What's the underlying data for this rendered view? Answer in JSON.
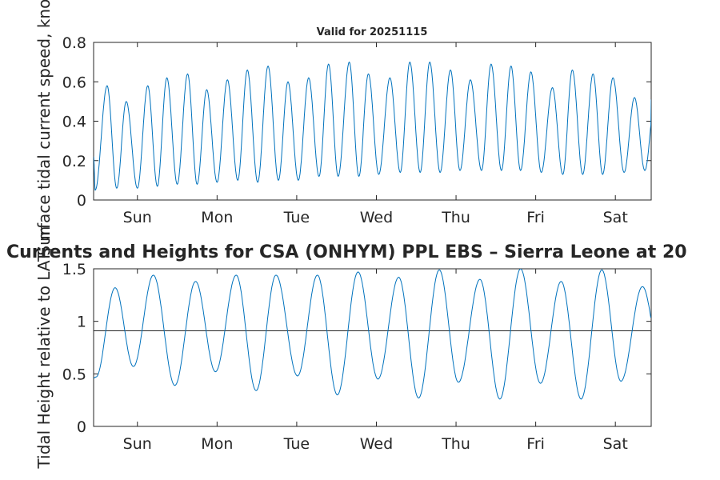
{
  "chart_data": [
    {
      "type": "line",
      "title": "Valid for 20251115",
      "xlabel": "",
      "ylabel": "Surface tidal current speed, knots",
      "ylim": [
        0,
        0.8
      ],
      "yticks": [
        "0",
        "0.2",
        "0.4",
        "0.6",
        "0.8"
      ],
      "xlim_days": [
        0,
        7
      ],
      "xticks": [
        {
          "day": 0.55,
          "label": "Sun"
        },
        {
          "day": 1.55,
          "label": "Mon"
        },
        {
          "day": 2.55,
          "label": "Tue"
        },
        {
          "day": 3.55,
          "label": "Wed"
        },
        {
          "day": 4.55,
          "label": "Thu"
        },
        {
          "day": 5.55,
          "label": "Fri"
        },
        {
          "day": 6.55,
          "label": "Sat"
        }
      ],
      "color": "#0072BD",
      "series": [
        {
          "name": "current speed",
          "start": {
            "day": 0.0,
            "value": 0.22
          },
          "extrema": [
            {
              "day": 0.02,
              "value": 0.05
            },
            {
              "day": 0.17,
              "value": 0.58
            },
            {
              "day": 0.29,
              "value": 0.06
            },
            {
              "day": 0.41,
              "value": 0.5
            },
            {
              "day": 0.55,
              "value": 0.06
            },
            {
              "day": 0.68,
              "value": 0.58
            },
            {
              "day": 0.8,
              "value": 0.07
            },
            {
              "day": 0.92,
              "value": 0.62
            },
            {
              "day": 1.05,
              "value": 0.08
            },
            {
              "day": 1.18,
              "value": 0.64
            },
            {
              "day": 1.3,
              "value": 0.08
            },
            {
              "day": 1.42,
              "value": 0.56
            },
            {
              "day": 1.55,
              "value": 0.09
            },
            {
              "day": 1.68,
              "value": 0.61
            },
            {
              "day": 1.81,
              "value": 0.1
            },
            {
              "day": 1.93,
              "value": 0.66
            },
            {
              "day": 2.06,
              "value": 0.09
            },
            {
              "day": 2.19,
              "value": 0.68
            },
            {
              "day": 2.32,
              "value": 0.1
            },
            {
              "day": 2.44,
              "value": 0.6
            },
            {
              "day": 2.57,
              "value": 0.1
            },
            {
              "day": 2.7,
              "value": 0.62
            },
            {
              "day": 2.83,
              "value": 0.12
            },
            {
              "day": 2.95,
              "value": 0.69
            },
            {
              "day": 3.07,
              "value": 0.12
            },
            {
              "day": 3.21,
              "value": 0.7
            },
            {
              "day": 3.33,
              "value": 0.12
            },
            {
              "day": 3.45,
              "value": 0.64
            },
            {
              "day": 3.58,
              "value": 0.13
            },
            {
              "day": 3.72,
              "value": 0.62
            },
            {
              "day": 3.85,
              "value": 0.14
            },
            {
              "day": 3.97,
              "value": 0.7
            },
            {
              "day": 4.1,
              "value": 0.14
            },
            {
              "day": 4.22,
              "value": 0.7
            },
            {
              "day": 4.35,
              "value": 0.14
            },
            {
              "day": 4.48,
              "value": 0.66
            },
            {
              "day": 4.6,
              "value": 0.15
            },
            {
              "day": 4.73,
              "value": 0.61
            },
            {
              "day": 4.87,
              "value": 0.15
            },
            {
              "day": 4.99,
              "value": 0.69
            },
            {
              "day": 5.12,
              "value": 0.15
            },
            {
              "day": 5.24,
              "value": 0.68
            },
            {
              "day": 5.36,
              "value": 0.15
            },
            {
              "day": 5.49,
              "value": 0.65
            },
            {
              "day": 5.62,
              "value": 0.14
            },
            {
              "day": 5.76,
              "value": 0.57
            },
            {
              "day": 5.89,
              "value": 0.13
            },
            {
              "day": 6.01,
              "value": 0.66
            },
            {
              "day": 6.14,
              "value": 0.13
            },
            {
              "day": 6.27,
              "value": 0.64
            },
            {
              "day": 6.39,
              "value": 0.13
            },
            {
              "day": 6.52,
              "value": 0.62
            },
            {
              "day": 6.66,
              "value": 0.14
            },
            {
              "day": 6.79,
              "value": 0.52
            },
            {
              "day": 6.92,
              "value": 0.15
            }
          ],
          "end": {
            "day": 7.0,
            "value": 0.51
          }
        }
      ]
    },
    {
      "type": "line",
      "title": "Currents and Heights for CSA (ONHYM) PPL EBS  – Sierra Leone at 20",
      "xlabel": "",
      "ylabel": "Tidal Height relative to LAT, m",
      "ylim": [
        0,
        1.5
      ],
      "yticks": [
        "0",
        "0.5",
        "1",
        "1.5"
      ],
      "xlim_days": [
        0,
        7
      ],
      "xticks": [
        {
          "day": 0.55,
          "label": "Sun"
        },
        {
          "day": 1.55,
          "label": "Mon"
        },
        {
          "day": 2.55,
          "label": "Tue"
        },
        {
          "day": 3.55,
          "label": "Wed"
        },
        {
          "day": 4.55,
          "label": "Thu"
        },
        {
          "day": 5.55,
          "label": "Fri"
        },
        {
          "day": 6.55,
          "label": "Sat"
        }
      ],
      "reference_line": 0.91,
      "color": "#0072BD",
      "series": [
        {
          "name": "tidal height",
          "start": {
            "day": 0.0,
            "value": 0.46
          },
          "extrema": [
            {
              "day": 0.03,
              "value": 0.47
            },
            {
              "day": 0.27,
              "value": 1.32
            },
            {
              "day": 0.5,
              "value": 0.57
            },
            {
              "day": 0.75,
              "value": 1.44
            },
            {
              "day": 1.02,
              "value": 0.39
            },
            {
              "day": 1.28,
              "value": 1.38
            },
            {
              "day": 1.53,
              "value": 0.52
            },
            {
              "day": 1.79,
              "value": 1.44
            },
            {
              "day": 2.04,
              "value": 0.34
            },
            {
              "day": 2.29,
              "value": 1.44
            },
            {
              "day": 2.56,
              "value": 0.48
            },
            {
              "day": 2.81,
              "value": 1.44
            },
            {
              "day": 3.06,
              "value": 0.3
            },
            {
              "day": 3.32,
              "value": 1.47
            },
            {
              "day": 3.57,
              "value": 0.45
            },
            {
              "day": 3.83,
              "value": 1.42
            },
            {
              "day": 4.08,
              "value": 0.27
            },
            {
              "day": 4.34,
              "value": 1.49
            },
            {
              "day": 4.58,
              "value": 0.42
            },
            {
              "day": 4.85,
              "value": 1.4
            },
            {
              "day": 5.1,
              "value": 0.26
            },
            {
              "day": 5.36,
              "value": 1.5
            },
            {
              "day": 5.61,
              "value": 0.41
            },
            {
              "day": 5.87,
              "value": 1.38
            },
            {
              "day": 6.12,
              "value": 0.26
            },
            {
              "day": 6.38,
              "value": 1.49
            },
            {
              "day": 6.62,
              "value": 0.43
            },
            {
              "day": 6.89,
              "value": 1.33
            }
          ],
          "end": {
            "day": 7.0,
            "value": 1.04
          }
        }
      ]
    }
  ]
}
